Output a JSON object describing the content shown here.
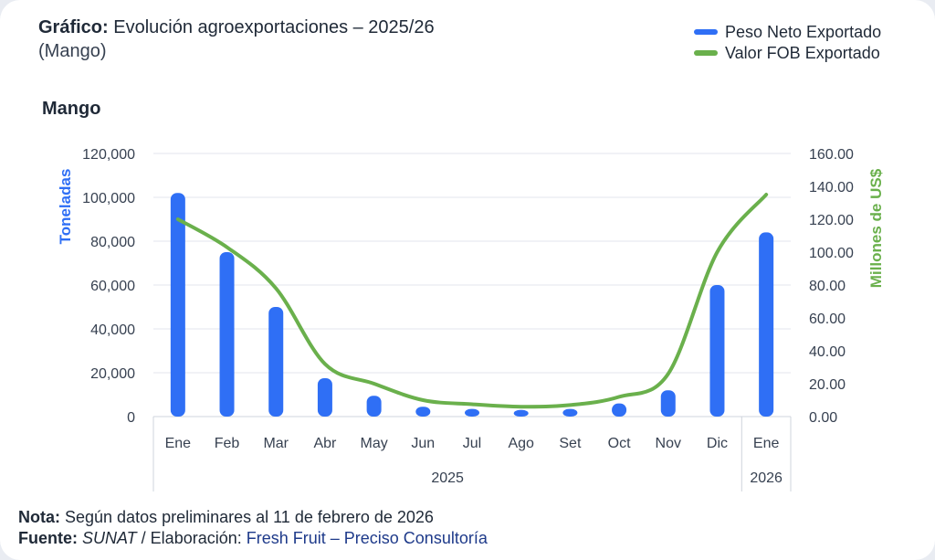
{
  "header": {
    "title_bold": "Gráfico:",
    "title_rest": " Evolución agroexportaciones – 2025/26",
    "subtitle": "(Mango)",
    "chart_heading": "Mango"
  },
  "footer": {
    "note_bold": "Nota:",
    "note_text": " Según datos preliminares al 11 de febrero de 2026",
    "source_bold": "Fuente:",
    "source_italic": " SUNAT",
    "source_sep": " / Elaboración: ",
    "source_link": "Fresh Fruit – Preciso Consultoría"
  },
  "colors": {
    "bars": "#2f6ff5",
    "line": "#6ab04c",
    "grid": "#e3e6ec"
  },
  "chart_data": {
    "type": "bar+line",
    "title": "Evolución agroexportaciones – 2025/26",
    "subtitle": "(Mango)",
    "categories": [
      "Ene",
      "Feb",
      "Mar",
      "Abr",
      "May",
      "Jun",
      "Jul",
      "Ago",
      "Set",
      "Oct",
      "Nov",
      "Dic",
      "Ene"
    ],
    "year_groups": [
      {
        "label": "2025",
        "count": 12
      },
      {
        "label": "2026",
        "count": 1
      }
    ],
    "series": [
      {
        "name": "Peso Neto Exportado",
        "type": "bar",
        "axis": "left",
        "values": [
          102000,
          75000,
          50000,
          17500,
          9500,
          4500,
          3500,
          3000,
          3500,
          6000,
          12000,
          60000,
          84000
        ]
      },
      {
        "name": "Valor FOB Exportado",
        "type": "line",
        "axis": "right",
        "values": [
          120,
          103,
          78,
          32,
          20,
          10,
          7.5,
          6,
          7,
          12,
          26,
          100,
          135
        ]
      }
    ],
    "ylabel_left": "Toneladas",
    "ylabel_right": "Millones de US$",
    "ylim_left": [
      0,
      120000
    ],
    "ylim_right": [
      0,
      160
    ],
    "yticks_left": [
      "0",
      "20,000",
      "40,000",
      "60,000",
      "80,000",
      "100,000",
      "120,000"
    ],
    "yticks_right": [
      "0.00",
      "20.00",
      "40.00",
      "60.00",
      "80.00",
      "100.00",
      "120.00",
      "140.00",
      "160.00"
    ],
    "legend_position": "top-right",
    "grid": true
  }
}
